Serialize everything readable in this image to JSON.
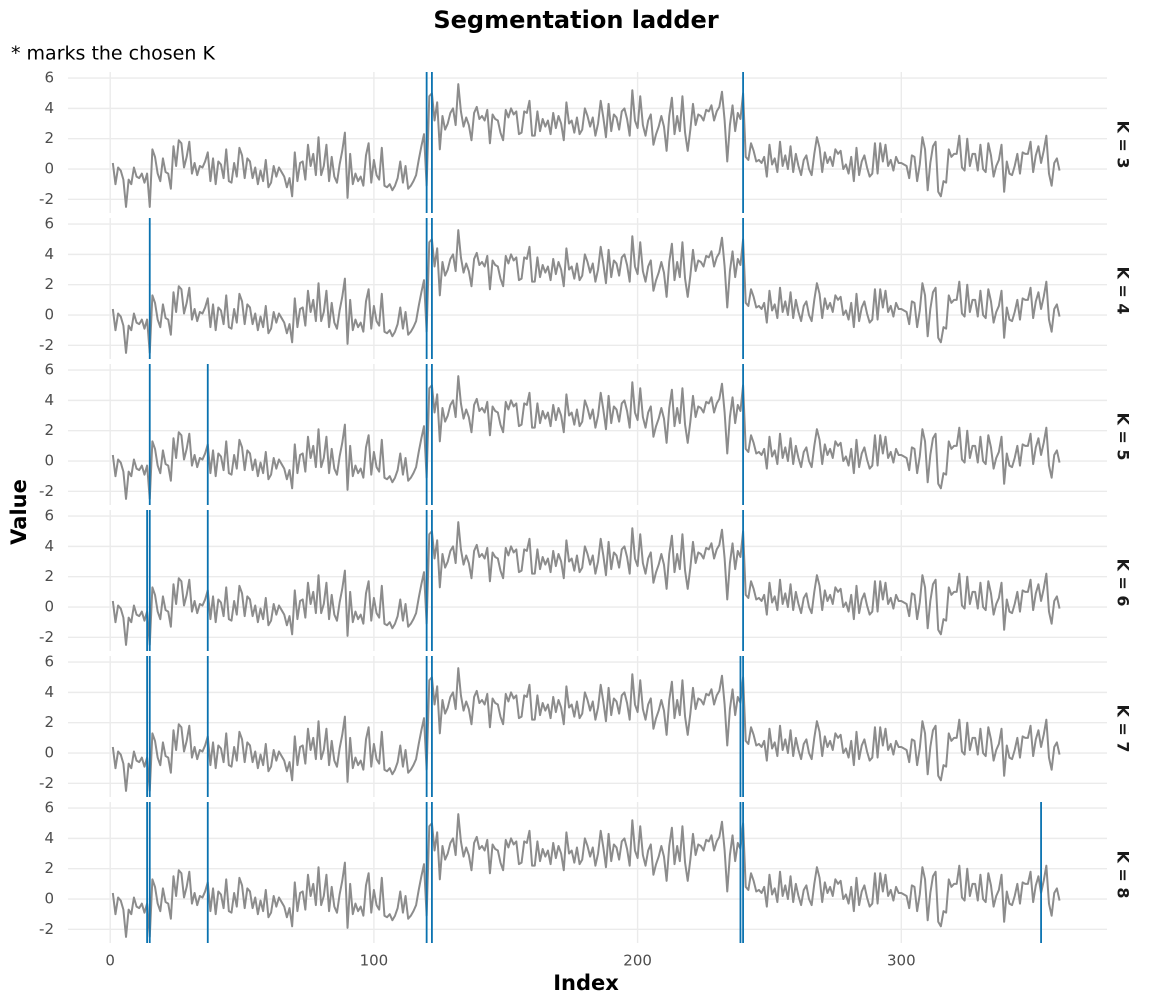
{
  "chart_data": {
    "type": "line",
    "title": "Segmentation ladder",
    "subtitle": "* marks the chosen K",
    "x_label": "Index",
    "y_label": "Value",
    "x": [
      1,
      2,
      3,
      4,
      5,
      6,
      7,
      8,
      9,
      10,
      11,
      12,
      13,
      14,
      15,
      16,
      17,
      18,
      19,
      20,
      21,
      22,
      23,
      24,
      25,
      26,
      27,
      28,
      29,
      30,
      31,
      32,
      33,
      34,
      35,
      36,
      37,
      38,
      39,
      40,
      41,
      42,
      43,
      44,
      45,
      46,
      47,
      48,
      49,
      50,
      51,
      52,
      53,
      54,
      55,
      56,
      57,
      58,
      59,
      60,
      61,
      62,
      63,
      64,
      65,
      66,
      67,
      68,
      69,
      70,
      71,
      72,
      73,
      74,
      75,
      76,
      77,
      78,
      79,
      80,
      81,
      82,
      83,
      84,
      85,
      86,
      87,
      88,
      89,
      90,
      91,
      92,
      93,
      94,
      95,
      96,
      97,
      98,
      99,
      100,
      101,
      102,
      103,
      104,
      105,
      106,
      107,
      108,
      109,
      110,
      111,
      112,
      113,
      114,
      115,
      116,
      117,
      118,
      119,
      120,
      121,
      122,
      123,
      124,
      125,
      126,
      127,
      128,
      129,
      130,
      131,
      132,
      133,
      134,
      135,
      136,
      137,
      138,
      139,
      140,
      141,
      142,
      143,
      144,
      145,
      146,
      147,
      148,
      149,
      150,
      151,
      152,
      153,
      154,
      155,
      156,
      157,
      158,
      159,
      160,
      161,
      162,
      163,
      164,
      165,
      166,
      167,
      168,
      169,
      170,
      171,
      172,
      173,
      174,
      175,
      176,
      177,
      178,
      179,
      180,
      181,
      182,
      183,
      184,
      185,
      186,
      187,
      188,
      189,
      190,
      191,
      192,
      193,
      194,
      195,
      196,
      197,
      198,
      199,
      200,
      201,
      202,
      203,
      204,
      205,
      206,
      207,
      208,
      209,
      210,
      211,
      212,
      213,
      214,
      215,
      216,
      217,
      218,
      219,
      220,
      221,
      222,
      223,
      224,
      225,
      226,
      227,
      228,
      229,
      230,
      231,
      232,
      233,
      234,
      235,
      236,
      237,
      238,
      239,
      240,
      241,
      242,
      243,
      244,
      245,
      246,
      247,
      248,
      249,
      250,
      251,
      252,
      253,
      254,
      255,
      256,
      257,
      258,
      259,
      260,
      261,
      262,
      263,
      264,
      265,
      266,
      267,
      268,
      269,
      270,
      271,
      272,
      273,
      274,
      275,
      276,
      277,
      278,
      279,
      280,
      281,
      282,
      283,
      284,
      285,
      286,
      287,
      288,
      289,
      290,
      291,
      292,
      293,
      294,
      295,
      296,
      297,
      298,
      299,
      300,
      301,
      302,
      303,
      304,
      305,
      306,
      307,
      308,
      309,
      310,
      311,
      312,
      313,
      314,
      315,
      316,
      317,
      318,
      319,
      320,
      321,
      322,
      323,
      324,
      325,
      326,
      327,
      328,
      329,
      330,
      331,
      332,
      333,
      334,
      335,
      336,
      337,
      338,
      339,
      340,
      341,
      342,
      343,
      344,
      345,
      346,
      347,
      348,
      349,
      350,
      351,
      352,
      353,
      354,
      355,
      356,
      357,
      358,
      359,
      360
    ],
    "values": [
      0.4,
      -1.0,
      0.1,
      -0.1,
      -0.7,
      -2.5,
      -0.7,
      -1.0,
      0.1,
      -0.5,
      -0.6,
      -0.3,
      -0.9,
      -0.3,
      -2.5,
      1.3,
      0.8,
      -0.3,
      -0.8,
      0.7,
      -0.2,
      -0.3,
      -1.3,
      1.5,
      0.2,
      1.9,
      1.7,
      0.1,
      0.8,
      1.8,
      -0.3,
      0.4,
      -0.4,
      0.2,
      0.1,
      0.5,
      1.1,
      -0.8,
      0.7,
      -1.0,
      0.5,
      0.3,
      -0.6,
      1.3,
      -0.8,
      -0.9,
      0.4,
      -0.5,
      1.4,
      0.9,
      -0.6,
      0.7,
      0.5,
      -0.6,
      0.1,
      -1.0,
      -0.1,
      -0.8,
      0.6,
      -1.2,
      -0.9,
      0.2,
      -0.5,
      0.1,
      -0.2,
      -0.5,
      -1.2,
      -0.6,
      -1.8,
      1.1,
      -0.8,
      0.4,
      0.5,
      -0.7,
      1.6,
      0.2,
      1.0,
      -0.4,
      2.1,
      -0.4,
      0.2,
      1.6,
      -0.8,
      0.8,
      -0.5,
      -0.9,
      0.3,
      1.2,
      2.4,
      -1.9,
      1.0,
      -1.0,
      -0.3,
      -0.8,
      -0.5,
      -1.1,
      0.9,
      1.7,
      -0.9,
      0.6,
      -0.4,
      -0.7,
      1.4,
      -1.1,
      -1.2,
      -1.0,
      -1.4,
      -1.1,
      -0.6,
      0.5,
      -0.9,
      0.2,
      -1.3,
      -1.1,
      -0.8,
      -0.4,
      0.6,
      1.5,
      2.3,
      -1.1,
      4.8,
      5.0,
      3.2,
      4.4,
      1.3,
      3.5,
      2.6,
      3.0,
      3.7,
      4.0,
      2.9,
      5.6,
      3.8,
      2.8,
      3.4,
      2.9,
      1.9,
      3.7,
      4.1,
      3.3,
      3.5,
      3.2,
      3.9,
      1.7,
      3.6,
      3.3,
      3.2,
      2.4,
      1.9,
      3.9,
      3.4,
      4.0,
      3.6,
      3.8,
      2.3,
      2.4,
      3.8,
      3.7,
      4.5,
      2.2,
      2.2,
      3.8,
      2.5,
      3.3,
      2.8,
      3.2,
      2.3,
      3.7,
      2.7,
      3.5,
      3.0,
      1.9,
      4.4,
      3.0,
      3.2,
      2.4,
      3.4,
      2.3,
      2.6,
      4.0,
      3.5,
      2.8,
      3.4,
      2.2,
      3.0,
      4.5,
      3.4,
      2.1,
      4.3,
      2.5,
      3.6,
      3.4,
      2.6,
      3.8,
      4.0,
      3.3,
      2.2,
      5.2,
      3.2,
      2.7,
      4.8,
      2.9,
      2.2,
      3.2,
      3.6,
      1.6,
      2.3,
      2.8,
      3.5,
      2.8,
      1.2,
      3.5,
      4.7,
      2.3,
      3.5,
      2.5,
      4.8,
      2.4,
      1.2,
      2.6,
      4.3,
      2.9,
      3.6,
      3.5,
      3.2,
      3.9,
      3.8,
      4.2,
      3.2,
      3.8,
      4.1,
      5.1,
      3.2,
      0.5,
      2.9,
      4.2,
      2.5,
      3.7,
      3.3,
      5.0,
      0.8,
      0.6,
      1.7,
      1.2,
      0.5,
      0.6,
      0.4,
      0.8,
      -0.5,
      1.6,
      0.3,
      0.7,
      -0.2,
      1.8,
      0.2,
      0.9,
      0.0,
      1.5,
      -0.2,
      1.0,
      0.2,
      -0.4,
      0.6,
      0.9,
      0.0,
      -0.4,
      1.0,
      2.1,
      1.4,
      -0.2,
      1.1,
      0.4,
      0.8,
      0.2,
      1.3,
      1.0,
      1.2,
      0.0,
      0.3,
      -0.3,
      0.8,
      -0.8,
      1.4,
      -0.4,
      0.5,
      0.9,
      0.1,
      -0.5,
      -0.3,
      1.7,
      -0.3,
      1.7,
      0.5,
      1.6,
      0.2,
      0.6,
      -0.1,
      0.8,
      0.4,
      0.4,
      0.3,
      0.2,
      -0.6,
      0.9,
      0.8,
      -0.8,
      0.3,
      2.1,
      1.3,
      -1.4,
      0.4,
      1.5,
      1.8,
      -1.5,
      -1.8,
      -0.8,
      -0.9,
      1.3,
      0.8,
      1.0,
      1.0,
      2.2,
      0.1,
      -0.1,
      2.0,
      0.2,
      1.0,
      1.0,
      -0.1,
      1.6,
      0.0,
      -0.2,
      1.7,
      0.9,
      -0.5,
      0.2,
      0.6,
      1.6,
      -1.5,
      0.5,
      -0.3,
      -0.4,
      0.2,
      1.0,
      -0.3,
      1.1,
      1.0,
      1.0,
      1.8,
      -0.2,
      0.9,
      1.5,
      0.4,
      1.2,
      2.2,
      -0.3,
      -1.1,
      0.4,
      0.7,
      -0.1
    ],
    "color": "#8c8c8c",
    "changepoint_color": "#0a72b0",
    "xlim": [
      -16,
      378
    ],
    "xticks": [
      0,
      100,
      200,
      300
    ],
    "ylim": [
      -2.9,
      6.4
    ],
    "yticks": [
      -2,
      0,
      2,
      4,
      6
    ],
    "grid": true,
    "panels": [
      {
        "label": "K = 3",
        "changepoints": [
          120,
          122,
          240
        ]
      },
      {
        "label": "K = 4",
        "changepoints": [
          15,
          120,
          122,
          240
        ]
      },
      {
        "label": "K = 5",
        "changepoints": [
          15,
          37,
          120,
          122,
          240
        ]
      },
      {
        "label": "K = 6",
        "changepoints": [
          14,
          15,
          37,
          120,
          122,
          240
        ]
      },
      {
        "label": "K = 7",
        "changepoints": [
          14,
          15,
          37,
          120,
          122,
          239,
          240
        ]
      },
      {
        "label": "K = 8",
        "changepoints": [
          14,
          15,
          37,
          120,
          122,
          239,
          240,
          353
        ]
      }
    ]
  }
}
